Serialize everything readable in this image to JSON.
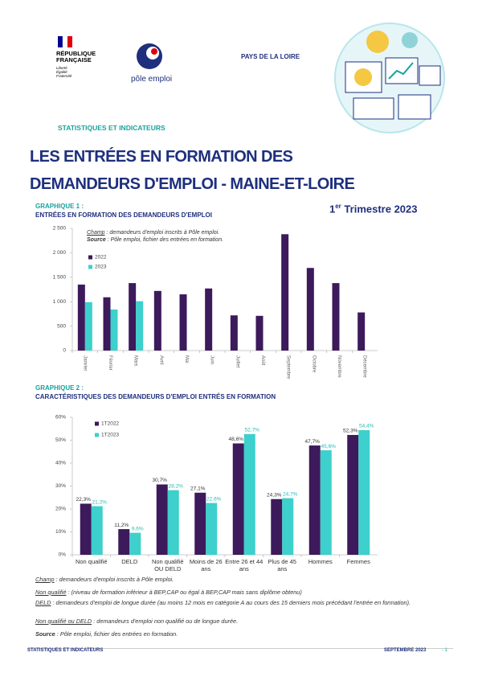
{
  "header": {
    "logo_rf": [
      "RÉPUBLIQUE",
      "FRANÇAISE"
    ],
    "motto": [
      "Liberté",
      "Égalité",
      "Fraternité"
    ],
    "pole_emploi": "pôle emploi",
    "region": "PAYS DE LA LOIRE",
    "section": "STATISTIQUES ET INDICATEURS",
    "title_lines": [
      "LES ENTRÉES EN FORMATION DES",
      "DEMANDEURS D'EMPLOI - MAINE-ET-LOIRE"
    ],
    "period": {
      "ordinal": "1",
      "suffix": "er",
      "text": "Trimestre 2023"
    }
  },
  "chart_data": [
    {
      "type": "bar",
      "label": "GRAPHIQUE 1 :",
      "title": "ENTRÉES EN FORMATION DES DEMANDEURS D'EMPLOI",
      "notes": [
        {
          "term": "Champ",
          "text": " : demandeurs d'emploi inscrits à Pôle emploi."
        },
        {
          "term": "Source",
          "text": " : Pôle emploi, fichier des entrées en formation."
        }
      ],
      "categories": [
        "Janvier",
        "Février",
        "Mars",
        "Avril",
        "Mai",
        "Juin",
        "Juillet",
        "Août",
        "Septembre",
        "Octobre",
        "Novembre",
        "Décembre"
      ],
      "series": [
        {
          "name": "2022",
          "color": "#3d1a5b",
          "values": [
            1350,
            1090,
            1380,
            1220,
            1150,
            1270,
            720,
            710,
            2380,
            1690,
            1380,
            780
          ]
        },
        {
          "name": "2023",
          "color": "#3dd0cc",
          "values": [
            990,
            840,
            1010,
            null,
            null,
            null,
            null,
            null,
            null,
            null,
            null,
            null
          ]
        }
      ],
      "ylim": [
        0,
        2500
      ],
      "yticks": [
        0,
        500,
        {
          "value": 1000,
          "label": "1 000"
        },
        {
          "value": 1500,
          "label": "1 500"
        },
        {
          "value": 2000,
          "label": "2 000"
        },
        {
          "value": 2500,
          "label": "2 500"
        }
      ],
      "grid": false,
      "legend": "upper left"
    },
    {
      "type": "bar",
      "label": "GRAPHIQUE 2 :",
      "title": "CARACTÉRISTIQUES DES DEMANDEURS D'EMPLOI ENTRÉS EN FORMATION",
      "categories": [
        "Non qualifié",
        "DELD",
        "Non qualifié OU DELD",
        "Moins de 26 ans",
        "Entre 26 et 44 ans",
        "Plus de 45 ans",
        "Hommes",
        "Femmes"
      ],
      "series": [
        {
          "name": "1T2022",
          "color": "#3d1a5b",
          "label_color": "#333333",
          "values": [
            22.3,
            11.2,
            30.7,
            27.1,
            48.6,
            24.3,
            47.7,
            52.3
          ],
          "value_labels": [
            "22,3%",
            "11,2%",
            "30,7%",
            "27,1%",
            "48,6%",
            "24,3%",
            "47,7%",
            "52,3%"
          ]
        },
        {
          "name": "1T2023",
          "color": "#3dd0cc",
          "label_color": "#2bb8b3",
          "values": [
            21.2,
            9.6,
            28.2,
            22.6,
            52.7,
            24.7,
            45.6,
            54.4
          ],
          "value_labels": [
            "21,2%",
            "9,6%",
            "28,2%",
            "22,6%",
            "52,7%",
            "24,7%",
            "45,6%",
            "54,4%"
          ]
        }
      ],
      "ylim": [
        0,
        60
      ],
      "yticks": [
        {
          "value": 0,
          "label": "0%"
        },
        {
          "value": 10,
          "label": "10%"
        },
        {
          "value": 20,
          "label": "20%"
        },
        {
          "value": 30,
          "label": "30%"
        },
        {
          "value": 40,
          "label": "40%"
        },
        {
          "value": 50,
          "label": "50%"
        },
        {
          "value": 60,
          "label": "60%"
        }
      ],
      "grid": false,
      "legend": "upper left"
    }
  ],
  "footnotes": [
    {
      "term": "Champ",
      "text": " : demandeurs d'emploi inscrits à Pôle emploi."
    },
    {
      "term": "Non qualifié",
      "text": " : (niveau de formation inférieur à BEP,CAP ou égal à BEP,CAP mais sans diplôme obtenu)"
    },
    {
      "term": "DELD",
      "text": " : demandeurs d'emploi de longue durée (au moins 12 mois en catégorie A au cours des 15 derniers mois précédant l'entrée en formation)."
    },
    {
      "term": "Non qualifié ou DELD",
      "text": " : demandeurs d'emploi non qualifié ou de longue durée."
    },
    {
      "term": "Source",
      "text": " : Pôle emploi, fichier des entrées en formation."
    }
  ],
  "footer": {
    "left": "STATISTIQUES ET INDICATEURS",
    "date": "SEPTEMBRE 2023",
    "page": "- 1"
  }
}
